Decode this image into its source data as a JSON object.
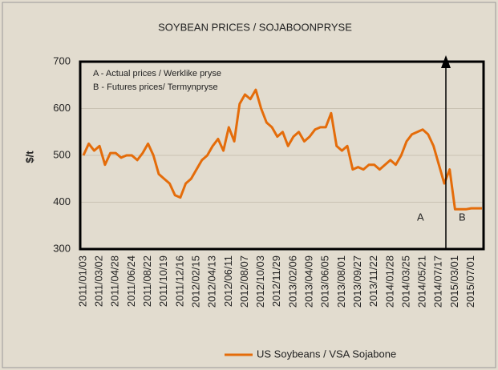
{
  "chart_data": {
    "type": "line",
    "title": "SOYBEAN PRICES / SOJABOONPRYSE",
    "y_label": "$/t",
    "annotations": [
      "A - Actual prices / Werklike pryse",
      "B - Futures prices/ Termynpryse",
      "A",
      "B"
    ],
    "categories": [
      "2011/01/03",
      null,
      null,
      "2011/03/02",
      null,
      null,
      "2011/04/28",
      null,
      null,
      "2011/06/24",
      null,
      null,
      "2011/08/22",
      null,
      null,
      "2011/10/19",
      null,
      null,
      "2011/12/16",
      null,
      null,
      "2012/02/15",
      null,
      null,
      "2012/04/13",
      null,
      null,
      "2012/06/11",
      null,
      null,
      "2012/08/07",
      null,
      null,
      "2012/10/03",
      null,
      null,
      "2012/11/29",
      null,
      null,
      "2013/02/06",
      null,
      null,
      "2013/04/09",
      null,
      null,
      "2013/06/05",
      null,
      null,
      "2013/08/01",
      null,
      null,
      "2013/09/27",
      null,
      null,
      "2013/11/22",
      null,
      null,
      "2014/01/28",
      null,
      null,
      "2014/03/25",
      null,
      null,
      "2014/05/21",
      null,
      null,
      "2014/07/17",
      null,
      null,
      "2015/03/01",
      null,
      null,
      "2015/07/01",
      null,
      null
    ],
    "series": [
      {
        "name": "US Soybeans / VSA Sojabone",
        "color": "#e46c0a",
        "values": [
          500,
          525,
          510,
          520,
          480,
          505,
          505,
          495,
          500,
          500,
          490,
          505,
          525,
          500,
          460,
          450,
          440,
          415,
          410,
          440,
          450,
          470,
          490,
          500,
          520,
          535,
          510,
          560,
          530,
          610,
          630,
          620,
          640,
          600,
          570,
          560,
          540,
          550,
          520,
          540,
          550,
          530,
          540,
          555,
          560,
          560,
          590,
          520,
          510,
          520,
          470,
          475,
          470,
          480,
          480,
          470,
          480,
          490,
          480,
          500,
          530,
          545,
          550,
          555,
          545,
          520,
          480,
          440,
          470,
          385,
          385,
          385,
          387,
          387,
          387
        ]
      }
    ],
    "ylim": [
      300,
      700
    ],
    "yticks": [
      300,
      400,
      500,
      600,
      700
    ],
    "grid": true
  }
}
